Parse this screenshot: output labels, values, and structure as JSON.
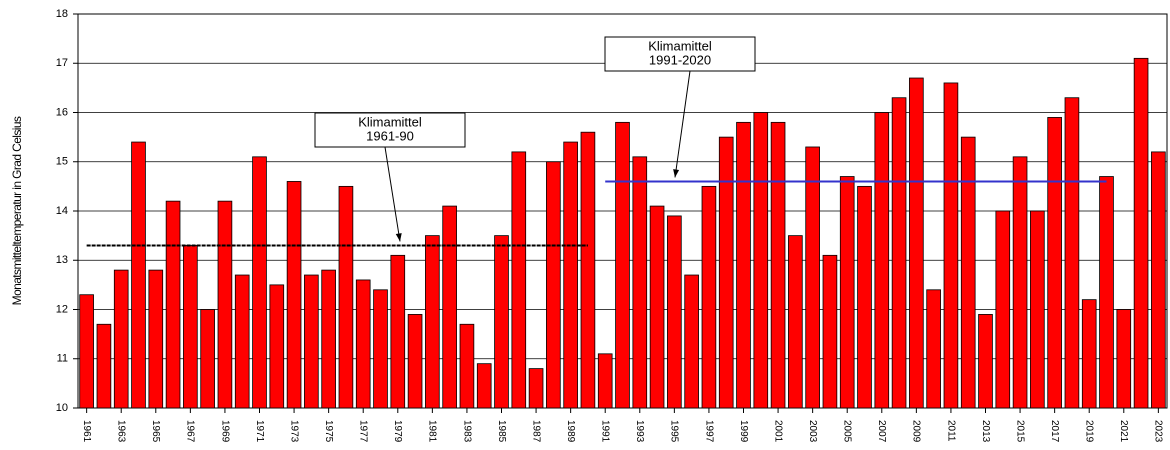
{
  "chart_data": {
    "type": "bar",
    "y_label": "Monatsmitteltemperatur in Grad Celsius",
    "x": [
      1961,
      1962,
      1963,
      1964,
      1965,
      1966,
      1967,
      1968,
      1969,
      1970,
      1971,
      1972,
      1973,
      1974,
      1975,
      1976,
      1977,
      1978,
      1979,
      1980,
      1981,
      1982,
      1983,
      1984,
      1985,
      1986,
      1987,
      1988,
      1989,
      1990,
      1991,
      1992,
      1993,
      1994,
      1995,
      1996,
      1997,
      1998,
      1999,
      2000,
      2001,
      2002,
      2003,
      2004,
      2005,
      2006,
      2007,
      2008,
      2009,
      2010,
      2011,
      2012,
      2013,
      2014,
      2015,
      2016,
      2017,
      2018,
      2019,
      2020,
      2021,
      2022,
      2023
    ],
    "values": [
      12.3,
      11.7,
      12.8,
      15.4,
      12.8,
      14.2,
      13.3,
      12.0,
      14.2,
      12.7,
      15.1,
      12.5,
      14.6,
      12.7,
      12.8,
      14.5,
      12.6,
      12.4,
      13.1,
      11.9,
      13.5,
      14.1,
      11.7,
      10.9,
      13.5,
      15.2,
      10.8,
      15.0,
      15.4,
      15.6,
      11.1,
      15.8,
      15.1,
      14.1,
      13.9,
      12.7,
      14.5,
      15.5,
      15.8,
      16.0,
      15.8,
      13.5,
      15.3,
      13.1,
      14.7,
      14.5,
      16.0,
      16.3,
      16.7,
      12.4,
      16.6,
      15.5,
      11.9,
      14.0,
      15.1,
      14.0,
      15.9,
      16.3,
      12.2,
      14.7,
      12.0,
      17.1,
      15.2
    ],
    "color": "#ff0000",
    "xlim": [
      1960.5,
      2023.5
    ],
    "xticks": [
      1961,
      1963,
      1965,
      1967,
      1969,
      1971,
      1973,
      1975,
      1977,
      1979,
      1981,
      1983,
      1985,
      1987,
      1989,
      1991,
      1993,
      1995,
      1997,
      1999,
      2001,
      2003,
      2005,
      2007,
      2009,
      2011,
      2013,
      2015,
      2017,
      2019,
      2021,
      2023
    ],
    "ylim": [
      10,
      18
    ],
    "yticks": [
      10,
      11,
      12,
      13,
      14,
      15,
      16,
      17,
      18
    ],
    "grid": true,
    "reference_lines": [
      {
        "value": 13.3,
        "x_range": [
          1961,
          1990
        ],
        "color": "#000000",
        "text": [
          "Klimamittel",
          "1961-90"
        ]
      },
      {
        "value": 14.6,
        "x_range": [
          1991,
          2020
        ],
        "color": "#3333cc",
        "text": [
          "Klimamittel",
          "1991-2020"
        ]
      }
    ]
  }
}
